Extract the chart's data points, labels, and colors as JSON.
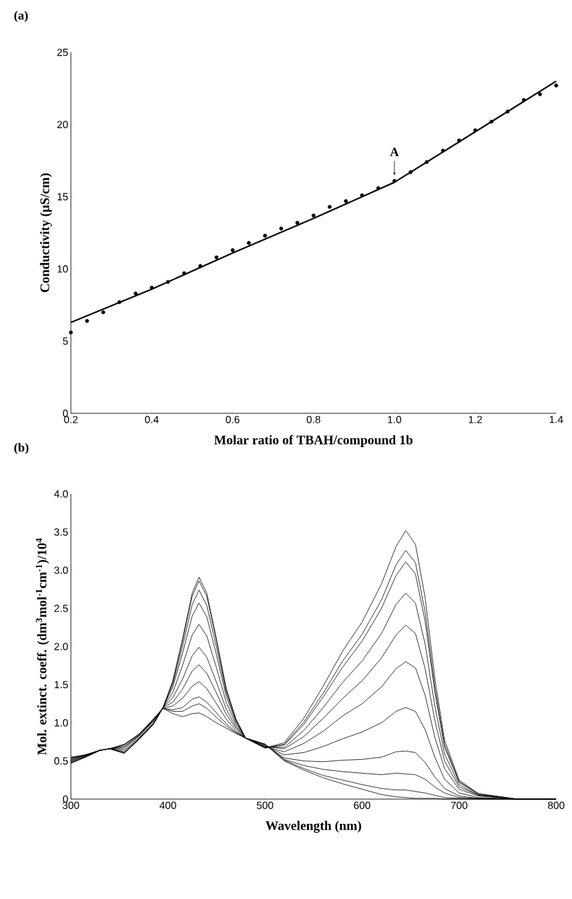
{
  "chart_data": [
    {
      "type": "scatter",
      "title": "(a)",
      "xlabel": "Molar ratio of TBAH/compound 1b",
      "ylabel": "Conductivity (µS/cm)",
      "xlim": [
        0.2,
        1.4
      ],
      "ylim": [
        0,
        25
      ],
      "xticks": [
        0.2,
        0.4,
        0.6,
        0.8,
        {
          "value": 1.0,
          "label": "1.0"
        },
        1.2,
        1.4
      ],
      "yticks": [
        0,
        5,
        10,
        15,
        20,
        25
      ],
      "annotations": [
        {
          "text": "A",
          "x": 1.0,
          "y": 16.07
        }
      ],
      "series": [
        {
          "type": "scatter",
          "marker": "circle",
          "color": "#000000",
          "x": [
            0.2,
            0.24,
            0.28,
            0.32,
            0.36,
            0.4,
            0.44,
            0.48,
            0.52,
            0.56,
            0.6,
            0.64,
            0.68,
            0.72,
            0.76,
            0.8,
            0.84,
            0.88,
            0.92,
            0.96,
            1.0,
            1.04,
            1.08,
            1.12,
            1.16,
            1.2,
            1.24,
            1.28,
            1.32,
            1.36,
            1.4
          ],
          "values": [
            5.6,
            6.4,
            7.0,
            7.7,
            8.3,
            8.7,
            9.1,
            9.7,
            10.2,
            10.8,
            11.3,
            11.8,
            12.3,
            12.8,
            13.2,
            13.7,
            14.3,
            14.7,
            15.1,
            15.6,
            16.1,
            16.7,
            17.4,
            18.2,
            18.9,
            19.6,
            20.2,
            20.9,
            21.7,
            22.1,
            22.7
          ]
        },
        {
          "type": "line",
          "marker": "none",
          "color": "#000000",
          "x": [
            0.2,
            0.4,
            0.6,
            0.8,
            1.0,
            1.2,
            1.4
          ],
          "values": [
            6.3,
            8.6,
            11.1,
            13.5,
            16.0,
            19.5,
            23.0
          ]
        }
      ]
    },
    {
      "type": "line",
      "title": "(b)",
      "xlabel": "Wavelength (nm)",
      "ylabel": "Mol. extinct. coeff. (dm$^{3}$mol$^{-1}$cm$^{-1}$)/10$^{4}$",
      "xlim": [
        300,
        800
      ],
      "ylim": [
        0,
        4
      ],
      "xticks": [
        300,
        400,
        500,
        600,
        700,
        800
      ],
      "yticks": [
        0,
        0.5,
        {
          "value": 1,
          "label": "1.0"
        },
        1.5,
        {
          "value": 2,
          "label": "2.0"
        },
        2.5,
        {
          "value": 3,
          "label": "3.0"
        },
        3.5,
        {
          "value": 4,
          "label": "4.0"
        }
      ],
      "x": [
        300,
        315,
        330,
        340,
        355,
        370,
        385,
        395,
        405,
        415,
        425,
        432,
        440,
        450,
        460,
        470,
        480,
        500,
        520,
        540,
        560,
        580,
        600,
        620,
        635,
        645,
        655,
        665,
        675,
        685,
        700,
        720,
        760,
        800
      ],
      "series": [
        {
          "color": "#000000",
          "values": [
            0.47,
            0.55,
            0.64,
            0.66,
            0.6,
            0.78,
            0.98,
            1.2,
            1.55,
            2.1,
            2.7,
            2.91,
            2.7,
            2.1,
            1.45,
            1.05,
            0.8,
            0.67,
            0.74,
            1.06,
            1.48,
            1.94,
            2.32,
            2.82,
            3.31,
            3.52,
            3.34,
            2.64,
            1.58,
            0.77,
            0.25,
            0.07,
            0,
            0
          ]
        },
        {
          "color": "#000000",
          "values": [
            0.47,
            0.55,
            0.64,
            0.66,
            0.6,
            0.78,
            0.98,
            1.2,
            1.54,
            2.07,
            2.66,
            2.86,
            2.66,
            2.07,
            1.44,
            1.05,
            0.8,
            0.67,
            0.72,
            1.01,
            1.39,
            1.81,
            2.16,
            2.61,
            3.07,
            3.26,
            3.1,
            2.45,
            1.47,
            0.72,
            0.23,
            0.07,
            0,
            0
          ]
        },
        {
          "color": "#000000",
          "values": [
            0.48,
            0.55,
            0.64,
            0.66,
            0.61,
            0.79,
            0.99,
            1.2,
            1.51,
            2.0,
            2.55,
            2.74,
            2.54,
            1.99,
            1.4,
            1.03,
            0.8,
            0.67,
            0.71,
            0.98,
            1.34,
            1.73,
            2.07,
            2.5,
            2.93,
            3.11,
            2.95,
            2.33,
            1.4,
            0.68,
            0.22,
            0.06,
            0,
            0
          ]
        },
        {
          "color": "#000000",
          "values": [
            0.49,
            0.56,
            0.64,
            0.66,
            0.62,
            0.79,
            0.99,
            1.2,
            1.47,
            1.91,
            2.4,
            2.57,
            2.39,
            1.89,
            1.35,
            1.01,
            0.8,
            0.68,
            0.68,
            0.9,
            1.2,
            1.53,
            1.81,
            2.17,
            2.55,
            2.7,
            2.57,
            2.03,
            1.22,
            0.59,
            0.19,
            0.05,
            0,
            0
          ]
        },
        {
          "color": "#000000",
          "values": [
            0.5,
            0.56,
            0.64,
            0.66,
            0.64,
            0.8,
            1.0,
            1.2,
            1.4,
            1.75,
            2.15,
            2.29,
            2.14,
            1.72,
            1.27,
            0.98,
            0.8,
            0.69,
            0.66,
            0.82,
            1.06,
            1.32,
            1.55,
            1.85,
            2.15,
            2.28,
            2.17,
            1.71,
            1.03,
            0.5,
            0.16,
            0.05,
            0,
            0
          ]
        },
        {
          "color": "#000000",
          "values": [
            0.51,
            0.57,
            0.64,
            0.66,
            0.66,
            0.82,
            1.02,
            1.2,
            1.33,
            1.57,
            1.88,
            1.99,
            1.86,
            1.53,
            1.18,
            0.95,
            0.8,
            0.69,
            0.62,
            0.73,
            0.89,
            1.09,
            1.25,
            1.47,
            1.71,
            1.8,
            1.72,
            1.36,
            0.81,
            0.4,
            0.13,
            0.04,
            0,
            0
          ]
        },
        {
          "color": "#000000",
          "values": [
            0.52,
            0.57,
            0.64,
            0.66,
            0.68,
            0.83,
            1.03,
            1.2,
            1.27,
            1.44,
            1.68,
            1.76,
            1.65,
            1.39,
            1.11,
            0.93,
            0.8,
            0.7,
            0.58,
            0.61,
            0.69,
            0.79,
            0.88,
            1.0,
            1.15,
            1.2,
            1.15,
            0.91,
            0.55,
            0.26,
            0.08,
            0.02,
            0,
            0
          ]
        },
        {
          "color": "#000000",
          "values": [
            0.53,
            0.57,
            0.64,
            0.66,
            0.69,
            0.83,
            1.03,
            1.19,
            1.22,
            1.32,
            1.48,
            1.54,
            1.45,
            1.25,
            1.05,
            0.9,
            0.8,
            0.71,
            0.54,
            0.5,
            0.49,
            0.51,
            0.52,
            0.55,
            0.62,
            0.63,
            0.61,
            0.48,
            0.29,
            0.14,
            0.04,
            0.01,
            0,
            0
          ]
        },
        {
          "color": "#000000",
          "values": [
            0.54,
            0.58,
            0.64,
            0.66,
            0.71,
            0.84,
            1.04,
            1.19,
            1.17,
            1.2,
            1.31,
            1.34,
            1.27,
            1.13,
            0.99,
            0.88,
            0.8,
            0.72,
            0.52,
            0.44,
            0.39,
            0.36,
            0.34,
            0.32,
            0.34,
            0.33,
            0.32,
            0.26,
            0.16,
            0.08,
            0.02,
            0.01,
            0,
            0
          ]
        },
        {
          "color": "#000000",
          "values": [
            0.54,
            0.58,
            0.64,
            0.66,
            0.71,
            0.85,
            1.05,
            1.19,
            1.15,
            1.15,
            1.22,
            1.25,
            1.19,
            1.07,
            0.96,
            0.87,
            0.8,
            0.72,
            0.51,
            0.4,
            0.31,
            0.25,
            0.19,
            0.14,
            0.12,
            0.12,
            0.1,
            0.08,
            0.05,
            0.02,
            0.01,
            0,
            0,
            0
          ]
        },
        {
          "color": "#000000",
          "values": [
            0.55,
            0.58,
            0.64,
            0.66,
            0.72,
            0.85,
            1.05,
            1.19,
            1.12,
            1.08,
            1.12,
            1.13,
            1.08,
            1.0,
            0.93,
            0.86,
            0.8,
            0.72,
            0.5,
            0.38,
            0.28,
            0.2,
            0.13,
            0.06,
            0.03,
            0.02,
            0.01,
            0.01,
            0.01,
            0,
            0,
            0,
            0,
            0
          ]
        }
      ]
    }
  ]
}
